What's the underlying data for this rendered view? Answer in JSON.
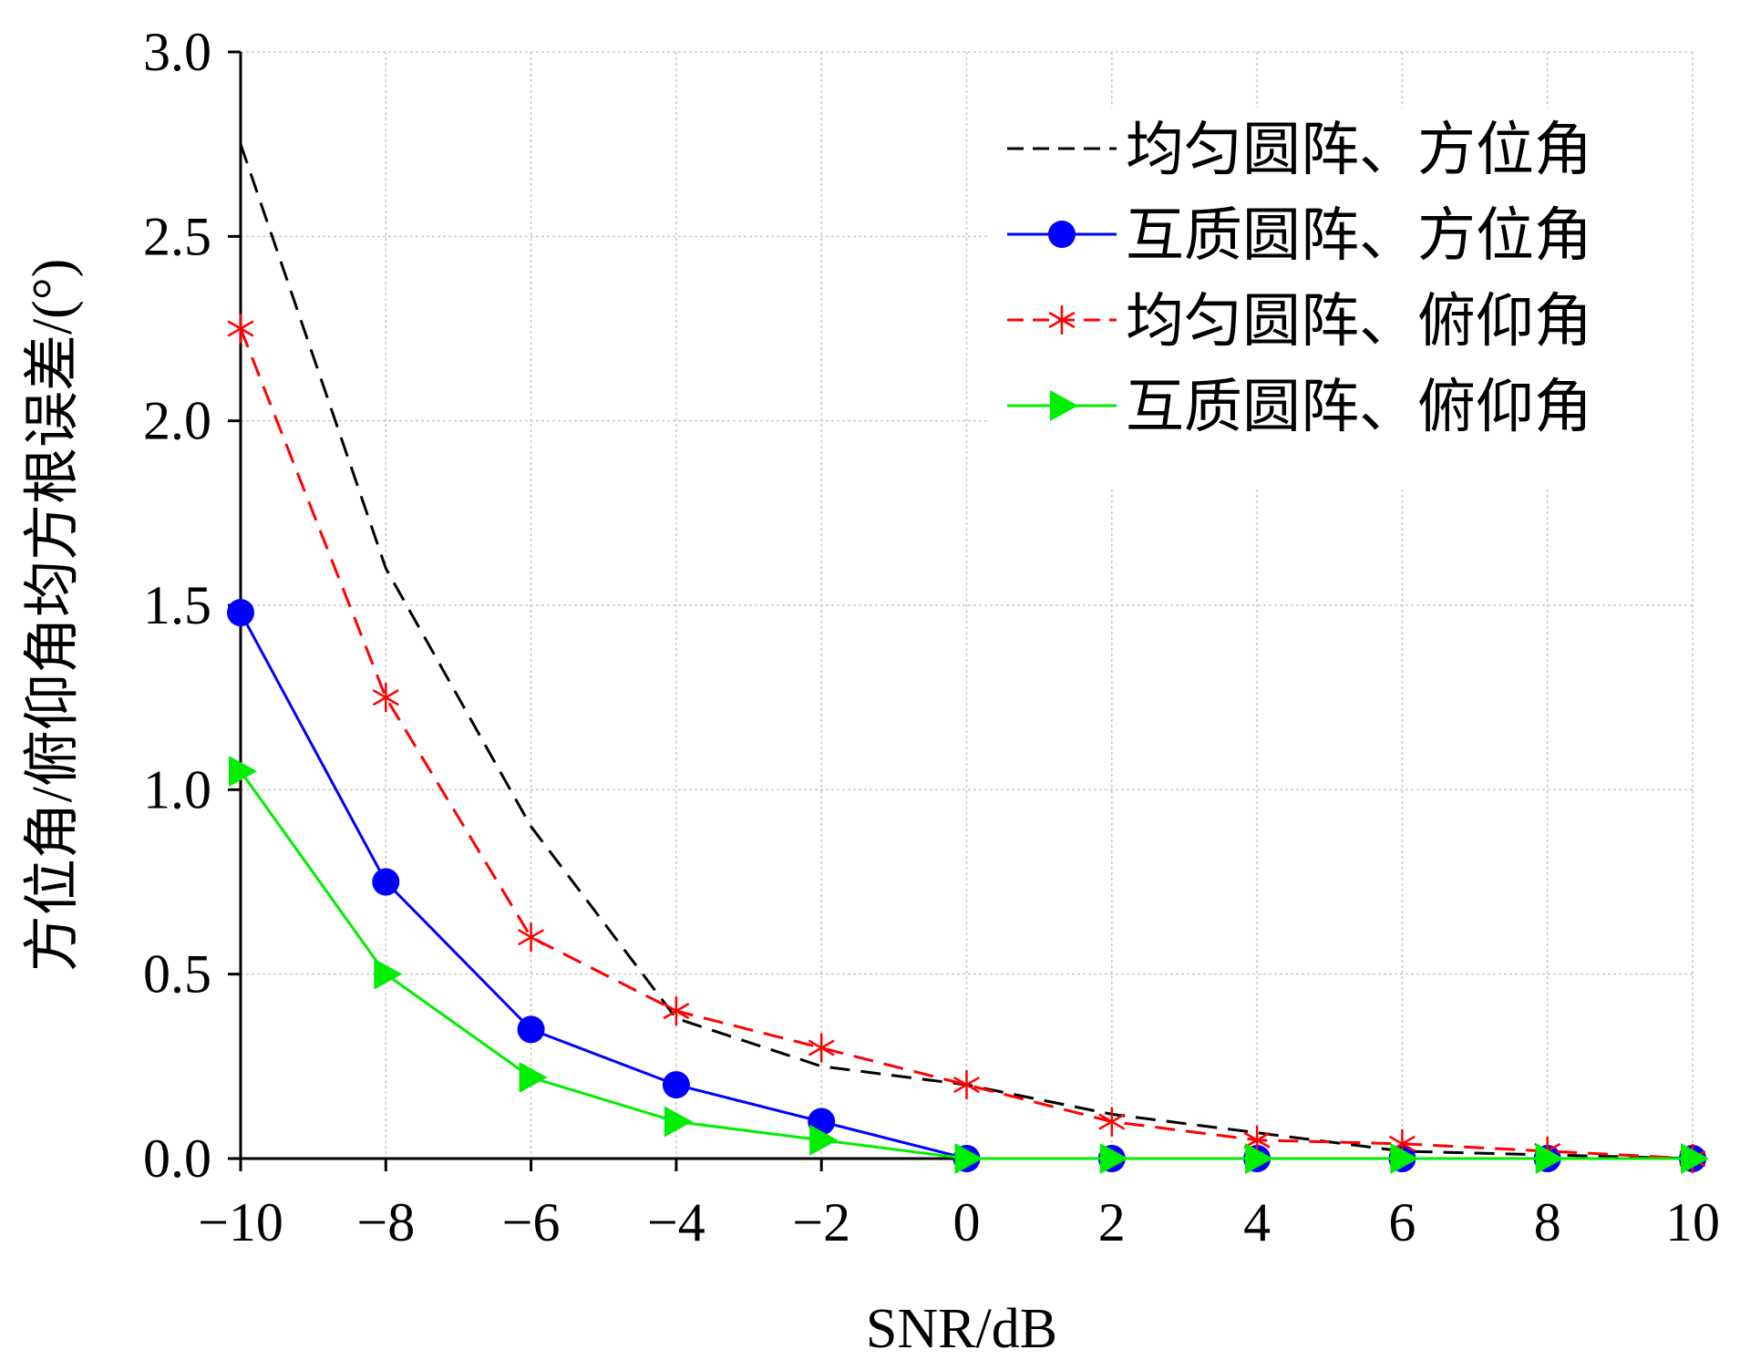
{
  "chart_data": {
    "type": "line",
    "title": "",
    "xlabel": "SNR/dB",
    "ylabel": "方位角/俯仰角均方根误差/(°)",
    "xlim": [
      -10,
      10
    ],
    "ylim": [
      0,
      3.0
    ],
    "grid": true,
    "legend_position": "top-right",
    "x": [
      -10,
      -8,
      -6,
      -4,
      -2,
      0,
      2,
      4,
      6,
      8,
      10
    ],
    "x_tick_labels": [
      "−10",
      "−8",
      "−6",
      "−4",
      "−2",
      "0",
      "2",
      "4",
      "6",
      "8",
      "10"
    ],
    "y_ticks": [
      0,
      0.5,
      1.0,
      1.5,
      2.0,
      2.5,
      3.0
    ],
    "y_tick_labels": [
      "0.0",
      "0.5",
      "1.0",
      "1.5",
      "2.0",
      "2.5",
      "3.0"
    ],
    "series": [
      {
        "name": "均匀圆阵、方位角",
        "color": "#000000",
        "line_style": "dashed",
        "marker": "none",
        "values": [
          2.75,
          1.6,
          0.9,
          0.38,
          0.25,
          0.2,
          0.12,
          0.07,
          0.02,
          0.01,
          0.0
        ]
      },
      {
        "name": "互质圆阵、方位角",
        "color": "#0000ff",
        "line_style": "solid",
        "marker": "circle",
        "values": [
          1.48,
          0.75,
          0.35,
          0.2,
          0.1,
          0.0,
          0.0,
          0.0,
          0.0,
          0.0,
          0.0
        ]
      },
      {
        "name": "均匀圆阵、俯仰角",
        "color": "#ff0000",
        "line_style": "dashed",
        "marker": "asterisk",
        "values": [
          2.25,
          1.25,
          0.6,
          0.4,
          0.3,
          0.2,
          0.1,
          0.05,
          0.04,
          0.02,
          0.0
        ]
      },
      {
        "name": "互质圆阵、俯仰角",
        "color": "#00ee00",
        "line_style": "solid",
        "marker": "triangle-right",
        "values": [
          1.05,
          0.5,
          0.22,
          0.1,
          0.05,
          0.0,
          0.0,
          0.0,
          0.0,
          0.0,
          0.0
        ]
      }
    ]
  }
}
